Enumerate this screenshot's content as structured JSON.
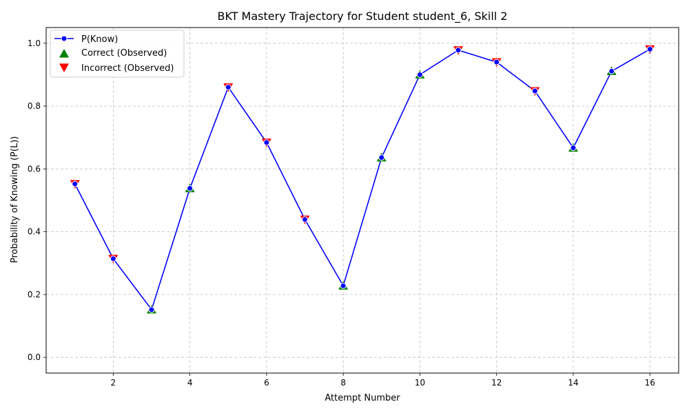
{
  "chart_data": {
    "type": "line",
    "title": "BKT Mastery Trajectory for Student student_6, Skill 2",
    "xlabel": "Attempt Number",
    "ylabel": "Probability of Knowing (P(L))",
    "xlim": [
      0.25,
      16.75
    ],
    "ylim": [
      -0.05,
      1.05
    ],
    "xticks": [
      2,
      4,
      6,
      8,
      10,
      12,
      14,
      16
    ],
    "xtick_labels": [
      "2",
      "4",
      "6",
      "8",
      "10",
      "12",
      "14",
      "16"
    ],
    "yticks": [
      0.0,
      0.2,
      0.4,
      0.6,
      0.8,
      1.0
    ],
    "ytick_labels": [
      "0.0",
      "0.2",
      "0.4",
      "0.6",
      "0.8",
      "1.0"
    ],
    "grid": true,
    "legend_position": "top-left",
    "x": [
      1,
      2,
      3,
      4,
      5,
      6,
      7,
      8,
      9,
      10,
      11,
      12,
      13,
      14,
      15,
      16
    ],
    "series": [
      {
        "name": "P(Know)",
        "kind": "line",
        "color": "#0000ff",
        "values": [
          0.552,
          0.314,
          0.152,
          0.538,
          0.86,
          0.684,
          0.439,
          0.228,
          0.636,
          0.9,
          0.978,
          0.94,
          0.848,
          0.667,
          0.911,
          0.981
        ]
      },
      {
        "name": "Correct (Observed)",
        "kind": "marker",
        "marker": "triangle-up",
        "color": "#008000",
        "x": [
          3,
          4,
          8,
          9,
          10,
          14,
          15
        ],
        "values": [
          0.152,
          0.538,
          0.228,
          0.636,
          0.9,
          0.667,
          0.911
        ]
      },
      {
        "name": "Incorrect (Observed)",
        "kind": "marker",
        "marker": "triangle-down",
        "color": "#ff0000",
        "x": [
          1,
          2,
          5,
          6,
          7,
          11,
          12,
          13,
          16
        ],
        "values": [
          0.552,
          0.314,
          0.86,
          0.684,
          0.439,
          0.978,
          0.94,
          0.848,
          0.981
        ]
      }
    ]
  }
}
